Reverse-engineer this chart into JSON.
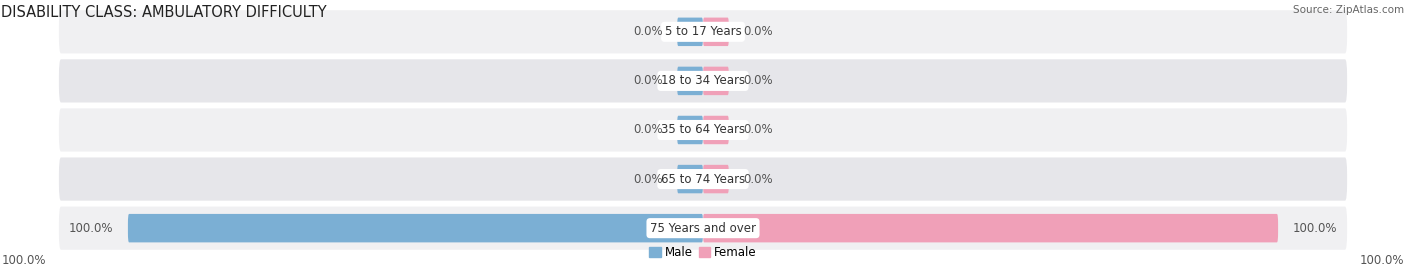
{
  "title": "DISABILITY CLASS: AMBULATORY DIFFICULTY",
  "source": "Source: ZipAtlas.com",
  "categories": [
    "5 to 17 Years",
    "18 to 34 Years",
    "35 to 64 Years",
    "65 to 74 Years",
    "75 Years and over"
  ],
  "male_values": [
    0.0,
    0.0,
    0.0,
    0.0,
    100.0
  ],
  "female_values": [
    0.0,
    0.0,
    0.0,
    0.0,
    100.0
  ],
  "male_color": "#7bafd4",
  "female_color": "#f0a0b8",
  "row_bg_colors": [
    "#f0f0f2",
    "#e6e6ea",
    "#f0f0f2",
    "#e6e6ea",
    "#f0f0f2"
  ],
  "label_color": "#555555",
  "title_fontsize": 10.5,
  "label_fontsize": 8.5,
  "value_fontsize": 8.5,
  "bottom_value_left": "100.0%",
  "bottom_value_right": "100.0%",
  "max_val": 100.0,
  "min_bar_stub": 4.5,
  "fig_width": 14.06,
  "fig_height": 2.69,
  "background_color": "#ffffff"
}
